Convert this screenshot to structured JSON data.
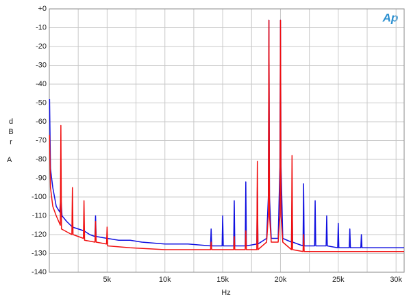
{
  "chart_data": {
    "type": "line",
    "xlabel": "Hz",
    "ylabel": "dBr",
    "yunit": "A",
    "logo": "Ap",
    "xlim": [
      0,
      30700
    ],
    "ylim": [
      -140,
      0
    ],
    "xticks": [
      {
        "value": 5000,
        "label": "5k"
      },
      {
        "value": 10000,
        "label": "10k"
      },
      {
        "value": 15000,
        "label": "15k"
      },
      {
        "value": 20000,
        "label": "20k"
      },
      {
        "value": 25000,
        "label": "25k"
      },
      {
        "value": 30000,
        "label": "30k"
      }
    ],
    "xgrid_minor": [
      2500,
      7500,
      12500,
      17500,
      22500,
      27500
    ],
    "yticks": [
      {
        "value": 0,
        "label": "+0"
      },
      -10,
      -20,
      -30,
      -40,
      -50,
      -60,
      -70,
      -80,
      -90,
      -100,
      -110,
      -120,
      -130,
      -140
    ],
    "grid": true,
    "series": [
      {
        "color": "#1010e0",
        "x": [
          20,
          100,
          300,
          600,
          900,
          1000,
          1100,
          1500,
          2000,
          2500,
          3000,
          3500,
          3950,
          4000,
          4050,
          5000,
          6000,
          7000,
          8000,
          10000,
          12000,
          13950,
          14000,
          14050,
          14950,
          15000,
          15050,
          15950,
          16000,
          16050,
          16950,
          17000,
          17050,
          17950,
          18000,
          18050,
          18800,
          18950,
          19000,
          19050,
          19200,
          19800,
          19950,
          20000,
          20050,
          20200,
          20950,
          21000,
          21050,
          21950,
          22000,
          22050,
          22950,
          23000,
          23050,
          23950,
          24000,
          24050,
          24950,
          25000,
          25050,
          25950,
          26000,
          26050,
          26950,
          27000,
          27050,
          30700
        ],
        "values": [
          -48,
          -85,
          -95,
          -105,
          -108,
          -100,
          -110,
          -113,
          -116,
          -117,
          -118,
          -120,
          -121,
          -110,
          -121,
          -122,
          -123,
          -123,
          -124,
          -125,
          -125,
          -126,
          -117,
          -126,
          -126,
          -110,
          -126,
          -126,
          -102,
          -126,
          -126,
          -92,
          -126,
          -125,
          -95,
          -125,
          -122,
          -100,
          -6,
          -100,
          -122,
          -122,
          -84,
          -6,
          -84,
          -122,
          -124,
          -100,
          -124,
          -126,
          -93,
          -126,
          -126,
          -102,
          -126,
          -126,
          -110,
          -126,
          -127,
          -114,
          -127,
          -127,
          -117,
          -127,
          -127,
          -120,
          -127,
          -127
        ]
      },
      {
        "color": "#f01010",
        "x": [
          20,
          100,
          300,
          600,
          950,
          1000,
          1050,
          1950,
          2000,
          2050,
          2950,
          3000,
          3050,
          3950,
          4000,
          4050,
          4950,
          5000,
          5050,
          7000,
          10000,
          13950,
          14000,
          14050,
          15950,
          16000,
          16050,
          16950,
          17000,
          17050,
          17950,
          18000,
          18050,
          18800,
          18950,
          19000,
          19050,
          19200,
          19800,
          19950,
          20000,
          20050,
          20200,
          20950,
          21000,
          21050,
          21950,
          22000,
          22050,
          30700
        ],
        "values": [
          -67,
          -95,
          -105,
          -110,
          -115,
          -62,
          -117,
          -120,
          -95,
          -120,
          -122,
          -102,
          -123,
          -124,
          -113,
          -124,
          -125,
          -116,
          -126,
          -127,
          -128,
          -128,
          -124,
          -128,
          -128,
          -121,
          -128,
          -128,
          -118,
          -128,
          -128,
          -81,
          -128,
          -124,
          -110,
          -6,
          -110,
          -124,
          -124,
          -110,
          -6,
          -110,
          -124,
          -128,
          -78,
          -128,
          -129,
          -120,
          -129,
          -129
        ]
      }
    ]
  }
}
